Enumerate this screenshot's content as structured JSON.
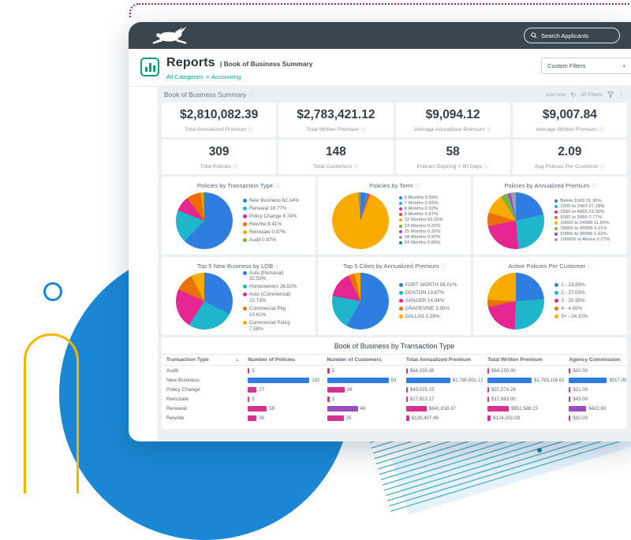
{
  "brand": {
    "search_label": "Search Applicants"
  },
  "page": {
    "title": "Reports",
    "subtitle": "| Book of Business Summary",
    "breadcrumb_parent": "All Categories",
    "breadcrumb_sep": ">",
    "breadcrumb_current": "Accounting",
    "custom_filters": "Custom Filters",
    "caret": "▾"
  },
  "report": {
    "title": "Book of Business Summary",
    "heart": "♡",
    "updated": "just now",
    "refresh_icon": "↻",
    "filters": "30 Filters",
    "kebab": "⋮",
    "info_icon": "ⓘ"
  },
  "kpis": [
    {
      "value": "$2,810,082.39",
      "label": "Total Annualized Premium"
    },
    {
      "value": "$2,783,421.12",
      "label": "Total Written Premium"
    },
    {
      "value": "$9,094.12",
      "label": "Average Annualized Premium"
    },
    {
      "value": "$9,007.84",
      "label": "Average Written Premium"
    },
    {
      "value": "309",
      "label": "Total Policies"
    },
    {
      "value": "148",
      "label": "Total Customers"
    },
    {
      "value": "58",
      "label": "Policies Expiring < 90 Days"
    },
    {
      "value": "2.09",
      "label": "Avg Policies Per Customer"
    }
  ],
  "chart_data": [
    {
      "type": "pie",
      "title": "Policies by Transaction Type",
      "slices": [
        {
          "label": "New Business 62.14%",
          "pct": 62.14,
          "color": "#2f7de1"
        },
        {
          "label": "Renewal 18.77%",
          "pct": 18.77,
          "color": "#1fb6cb"
        },
        {
          "label": "Policy Change 8.74%",
          "pct": 8.74,
          "color": "#e52592"
        },
        {
          "label": "Rewrite 8.41%",
          "pct": 8.41,
          "color": "#ef6c00"
        },
        {
          "label": "Reinstate 0.97%",
          "pct": 0.97,
          "color": "#f9ab00"
        },
        {
          "label": "Audit 0.97%",
          "pct": 0.97,
          "color": "#7cb342"
        }
      ]
    },
    {
      "type": "pie",
      "title": "Policies by Term",
      "slices": [
        {
          "label": "6 Months 3.56%",
          "pct": 3.56,
          "color": "#2f7de1"
        },
        {
          "label": "7 Months 0.65%",
          "pct": 0.65,
          "color": "#1fb6cb"
        },
        {
          "label": "8 Months 0.32%",
          "pct": 0.32,
          "color": "#e52592"
        },
        {
          "label": "9 Months 0.97%",
          "pct": 0.97,
          "color": "#e8453c"
        },
        {
          "label": "12 Months 93.20%",
          "pct": 93.2,
          "color": "#f9ab00"
        },
        {
          "label": "13 Months 0.32%",
          "pct": 0.32,
          "color": "#7cb342"
        },
        {
          "label": "15 Months 0.32%",
          "pct": 0.32,
          "color": "#a142f4"
        },
        {
          "label": "18 Months 0.97%",
          "pct": 0.97,
          "color": "#9aa0a6"
        },
        {
          "label": "24 Months 0.65%",
          "pct": 0.65,
          "color": "#009688"
        }
      ]
    },
    {
      "type": "pie",
      "title": "Policies by Annualized Premium",
      "slices": [
        {
          "label": "Below 1000 21.36%",
          "pct": 21.36,
          "color": "#2f7de1"
        },
        {
          "label": "1000 to 2499 27.18%",
          "pct": 27.18,
          "color": "#1fb6cb"
        },
        {
          "label": "2500 to 4999 23.30%",
          "pct": 23.3,
          "color": "#e52592"
        },
        {
          "label": "5000 to 9999 7.77%",
          "pct": 7.77,
          "color": "#e8710a"
        },
        {
          "label": "10000 to 24999 11.65%",
          "pct": 11.65,
          "color": "#f9ab00"
        },
        {
          "label": "25000 to 49999 4.21%",
          "pct": 4.21,
          "color": "#7cb342"
        },
        {
          "label": "50000 to 99999 1.62%",
          "pct": 1.62,
          "color": "#a142f4"
        },
        {
          "label": "100000 or Above 2.27%",
          "pct": 2.27,
          "color": "#9aa0a6"
        }
      ]
    },
    {
      "type": "pie",
      "title": "Top 5 New Business by LOB",
      "slices": [
        {
          "label": "Auto (Personal) 32.53%",
          "pct": 32.53,
          "color": "#2f7de1"
        },
        {
          "label": "Homeowners 26.52%",
          "pct": 26.52,
          "color": "#1fb6cb"
        },
        {
          "label": "Auto (Commercial) 22.73%",
          "pct": 22.73,
          "color": "#e52592"
        },
        {
          "label": "Commercial Pkg 10.61%",
          "pct": 10.61,
          "color": "#e8710a"
        },
        {
          "label": "Commercial Policy 7.58%",
          "pct": 7.58,
          "color": "#f9ab00"
        }
      ]
    },
    {
      "type": "pie",
      "title": "Top 5 Cities by Annualized Premium",
      "slices": [
        {
          "label": "FORT WORTH 58.01%",
          "pct": 58.01,
          "color": "#2f7de1"
        },
        {
          "label": "DENTON 19.87%",
          "pct": 19.87,
          "color": "#1fb6cb"
        },
        {
          "label": "SANGER 14.94%",
          "pct": 14.94,
          "color": "#e52592"
        },
        {
          "label": "GRAPEVINE 3.90%",
          "pct": 3.9,
          "color": "#e8710a"
        },
        {
          "label": "DALLAS 3.28%",
          "pct": 3.28,
          "color": "#f9ab00"
        }
      ]
    },
    {
      "type": "pie",
      "title": "Active Policies Per Customer",
      "slices": [
        {
          "label": "1 - 23.65%",
          "pct": 23.65,
          "color": "#2f7de1"
        },
        {
          "label": "2 - 27.03%",
          "pct": 27.03,
          "color": "#1fb6cb"
        },
        {
          "label": "3 - 20.95%",
          "pct": 20.95,
          "color": "#e52592"
        },
        {
          "label": "4 - 4.05%",
          "pct": 4.05,
          "color": "#e8710a"
        },
        {
          "label": "5+ - 24.32%",
          "pct": 24.32,
          "color": "#f9ab00"
        }
      ]
    }
  ],
  "table": {
    "title": "Book of Business by Transaction Type",
    "sort_icon": "▴",
    "columns": [
      "Transaction Type",
      "Number of Policies",
      "Number of Customers",
      "Total Annualized Premium",
      "Total Written Premium",
      "Agency Commission"
    ],
    "rows": [
      {
        "type": "Audit",
        "display": {
          "policies": "3",
          "customers": "3",
          "annualized": "$64,150.38",
          "written": "$64,150.00",
          "commission": "$10.00"
        },
        "values": {
          "policies": 3,
          "customers": 3,
          "annualized": 64150,
          "written": 64150,
          "commission": 10
        },
        "colors": {
          "policies": "#d6318f",
          "customers": "#d6318f",
          "annualized": "#d6318f",
          "written": "#d6318f",
          "commission": "#d6318f"
        }
      },
      {
        "type": "New Business",
        "display": {
          "policies": "192",
          "customers": "93",
          "annualized": "$1,780,801.13",
          "written": "$1,793,116.61",
          "commission": "$917.00"
        },
        "values": {
          "policies": 192,
          "customers": 93,
          "annualized": 1780801,
          "written": 1793117,
          "commission": 917
        },
        "colors": {
          "policies": "#2f7de1",
          "customers": "#2f7de1",
          "annualized": "#2f7de1",
          "written": "#2f7de1",
          "commission": "#2f7de1"
        }
      },
      {
        "type": "Policy Change",
        "display": {
          "policies": "27",
          "customers": "26",
          "annualized": "$49,025.15",
          "written": "$57,574.28",
          "commission": "$21.00"
        },
        "values": {
          "policies": 27,
          "customers": 26,
          "annualized": 49025,
          "written": 57574,
          "commission": 21
        },
        "colors": {
          "policies": "#d6318f",
          "customers": "#d6318f",
          "annualized": "#d6318f",
          "written": "#d6318f",
          "commission": "#d6318f"
        }
      },
      {
        "type": "Reinstate",
        "display": {
          "policies": "3",
          "customers": "3",
          "annualized": "$17,613.17",
          "written": "$17,683.00",
          "commission": "$43.00"
        },
        "values": {
          "policies": 3,
          "customers": 3,
          "annualized": 17613,
          "written": 17683,
          "commission": 43
        },
        "colors": {
          "policies": "#d6318f",
          "customers": "#d6318f",
          "annualized": "#d6318f",
          "written": "#d6318f",
          "commission": "#d6318f"
        }
      },
      {
        "type": "Renewal",
        "display": {
          "policies": "58",
          "customers": "46",
          "annualized": "$841,818.37",
          "written": "$851,588.23",
          "commission": "$422.60"
        },
        "values": {
          "policies": 58,
          "customers": 46,
          "annualized": 841818,
          "written": 851588,
          "commission": 422.6
        },
        "colors": {
          "policies": "#d6318f",
          "customers": "#9c4dbb",
          "annualized": "#d6318f",
          "written": "#d6318f",
          "commission": "#9c4dbb"
        }
      },
      {
        "type": "Rewrite",
        "display": {
          "policies": "26",
          "customers": "25",
          "annualized": "$130,407.46",
          "written": "$124,031.09",
          "commission": "$10.00"
        },
        "values": {
          "policies": 26,
          "customers": 25,
          "annualized": 130407,
          "written": 124031,
          "commission": 10
        },
        "colors": {
          "policies": "#d6318f",
          "customers": "#d6318f",
          "annualized": "#d6318f",
          "written": "#d6318f",
          "commission": "#d6318f"
        }
      }
    ]
  }
}
